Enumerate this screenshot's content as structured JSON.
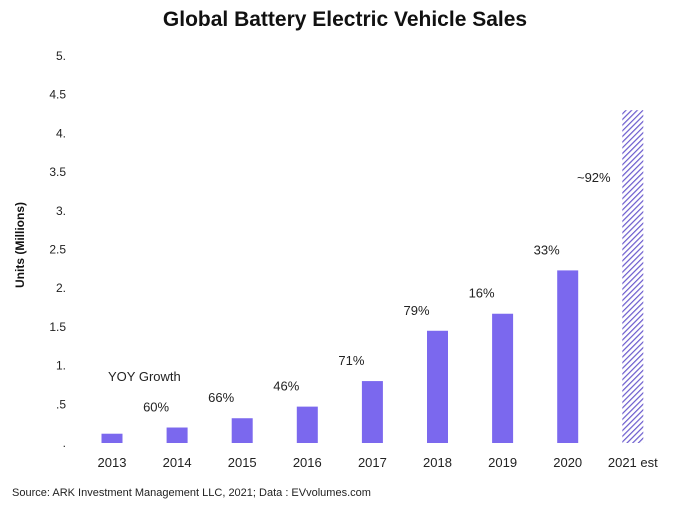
{
  "chart_data": {
    "type": "bar",
    "title": "Global Battery Electric Vehicle Sales",
    "ylabel": "Units (Millions)",
    "xlabel": "",
    "categories": [
      "2013",
      "2014",
      "2015",
      "2016",
      "2017",
      "2018",
      "2019",
      "2020",
      "2021 est"
    ],
    "values": [
      0.12,
      0.2,
      0.32,
      0.47,
      0.8,
      1.45,
      1.67,
      2.23,
      4.3
    ],
    "growth_labels": [
      "",
      "60%",
      "66%",
      "46%",
      "71%",
      "79%",
      "16%",
      "33%",
      "~92%"
    ],
    "growth_heading": "YOY Growth",
    "y_ticks": [
      ".",
      ".5",
      "1.",
      "1.5",
      "2.",
      "2.5",
      "3.",
      "3.5",
      "4.",
      "4.5",
      "5."
    ],
    "y_tick_values": [
      0,
      0.5,
      1,
      1.5,
      2,
      2.5,
      3,
      3.5,
      4,
      4.5,
      5
    ],
    "ylim": [
      0,
      5
    ],
    "grid": false,
    "colors": {
      "bar": "#7b68ee",
      "estimate_hatch": "#6a5acd"
    },
    "estimate_pattern": "diagonal-hatch",
    "source": "Source: ARK Investment Management LLC, 2021; Data : EVvolumes.com"
  }
}
